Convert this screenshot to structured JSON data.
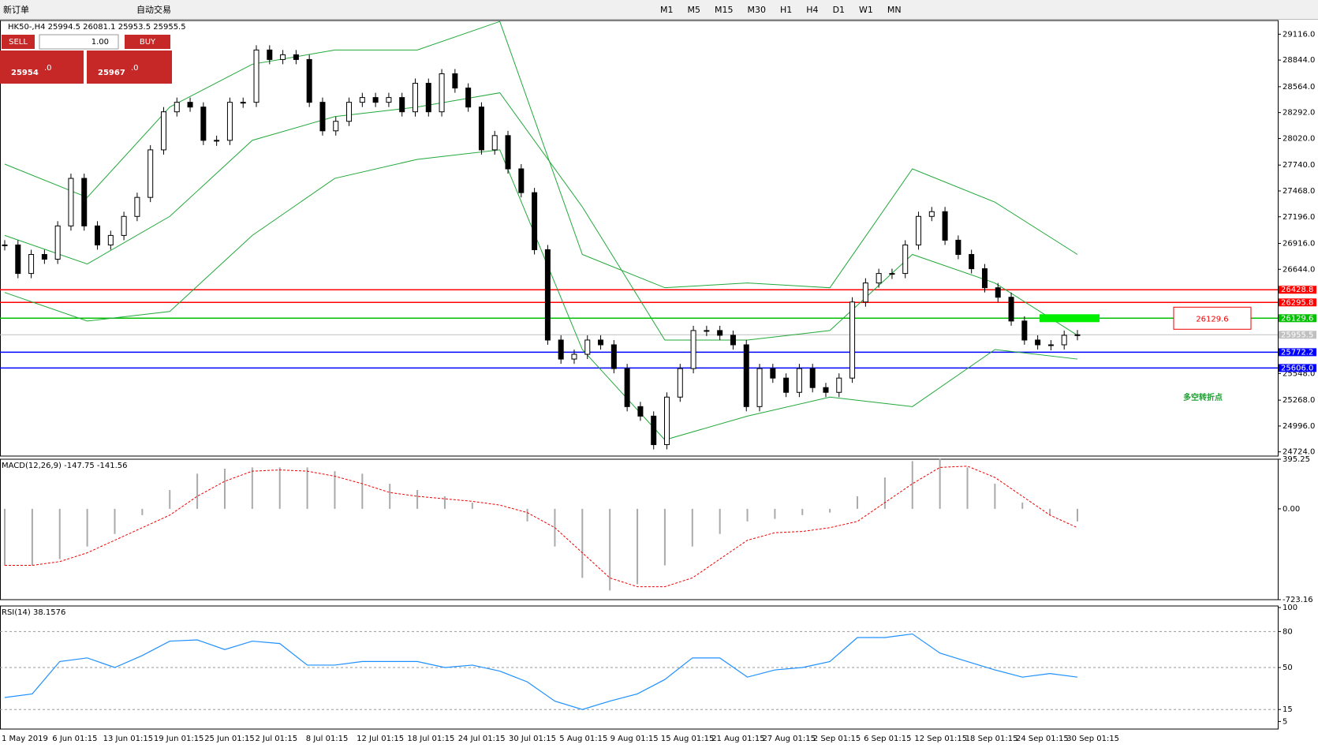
{
  "toolbar": {
    "new_order": "新订单",
    "auto_trading": "自动交易",
    "timeframes": [
      "M1",
      "M5",
      "M15",
      "M30",
      "H1",
      "H4",
      "D1",
      "W1",
      "MN"
    ]
  },
  "trade_panel": {
    "sell": "SELL",
    "buy": "BUY",
    "lots": "1.00",
    "sell_price": "25954",
    "sell_frac": ".0",
    "buy_price": "25967",
    "buy_frac": ".0"
  },
  "chart_data": {
    "type": "candlestick",
    "title": "HK50-,H4  25994.5 26081.1 25953.5 25955.5",
    "close": [
      26900,
      26600,
      26800,
      26750,
      27100,
      27600,
      27100,
      26900,
      27000,
      27200,
      27400,
      27900,
      28300,
      28400,
      28350,
      28000,
      28000,
      28400,
      28400,
      28950,
      28850,
      28900,
      28850,
      28400,
      28100,
      28200,
      28400,
      28450,
      28400,
      28450,
      28300,
      28600,
      28300,
      28700,
      28550,
      28350,
      27900,
      28050,
      27700,
      27450,
      26850,
      25900,
      25700,
      25750,
      25900,
      25850,
      25600,
      25200,
      25100,
      24800,
      25300,
      25600,
      26000,
      26000,
      25950,
      25850,
      25200,
      25600,
      25500,
      25350,
      25600,
      25400,
      25350,
      25500,
      26300,
      26500,
      26600,
      26600,
      26900,
      27200,
      27250,
      26950,
      26800,
      26650,
      26450,
      26350,
      26100,
      25900,
      25850,
      25850,
      25950,
      25955.5
    ],
    "bands": [
      {
        "color": "#22a83a",
        "values": [
          27750,
          27400,
          28350,
          28800,
          28950,
          28950,
          29250,
          26800,
          26450,
          26500,
          26450,
          27700,
          27350,
          26800
        ]
      },
      {
        "color": "#22a83a",
        "values": [
          27000,
          26700,
          27200,
          28000,
          28250,
          28350,
          28500,
          27300,
          25900,
          25900,
          26000,
          26800,
          26500,
          25950
        ]
      },
      {
        "color": "#22a83a",
        "values": [
          26400,
          26100,
          26200,
          27000,
          27600,
          27800,
          27900,
          25800,
          24850,
          25100,
          25300,
          25200,
          25800,
          25700
        ]
      }
    ],
    "ylim": [
      24680,
      29260
    ],
    "yticks": [
      {
        "value": 29116,
        "label": "29116.0"
      },
      {
        "value": 28844,
        "label": "28844.0"
      },
      {
        "value": 28564,
        "label": "28564.0"
      },
      {
        "value": 28292,
        "label": "28292.0"
      },
      {
        "value": 28020,
        "label": "28020.0"
      },
      {
        "value": 27740,
        "label": "27740.0"
      },
      {
        "value": 27468,
        "label": "27468.0"
      },
      {
        "value": 27196,
        "label": "27196.0"
      },
      {
        "value": 26916,
        "label": "26916.0"
      },
      {
        "value": 26644,
        "label": "26644.0"
      },
      {
        "value": 25548,
        "label": "25548.0"
      },
      {
        "value": 25268,
        "label": "25268.0"
      },
      {
        "value": 24996,
        "label": "24996.0"
      },
      {
        "value": 24724,
        "label": "24724.0"
      }
    ],
    "levels": [
      {
        "value": 26428.8,
        "color": "#ff0000"
      },
      {
        "value": 26295.8,
        "color": "#ff0000"
      },
      {
        "value": 26129.6,
        "color": "#00c000"
      },
      {
        "value": 25955.5,
        "color": "#c0c0c0"
      },
      {
        "value": 25772.2,
        "color": "#0000ff"
      },
      {
        "value": 25606,
        "label": "25606.0",
        "color": "#0000ff"
      }
    ],
    "annotation": "26129.6",
    "annotation_value": 26129.6,
    "note": "多空转折点",
    "macd": {
      "title": "MACD(12,26,9) -147.75 -141.56",
      "ylim": [
        -723.16,
        395.25
      ],
      "yticks": [
        {
          "value": 395.25,
          "label": "395.25"
        },
        {
          "value": 0,
          "label": "0.00"
        },
        {
          "value": -723.16,
          "label": "-723.16"
        }
      ],
      "histogram": [
        -450,
        -450,
        -400,
        -300,
        -200,
        -50,
        150,
        280,
        320,
        330,
        330,
        330,
        300,
        280,
        200,
        150,
        100,
        50,
        0,
        -100,
        -300,
        -550,
        -650,
        -600,
        -450,
        -300,
        -200,
        -100,
        -80,
        -50,
        -30,
        100,
        250,
        380,
        400,
        330,
        200,
        50,
        -50,
        -100
      ],
      "signal": [
        -450,
        -450,
        -420,
        -350,
        -250,
        -150,
        -50,
        100,
        220,
        300,
        310,
        300,
        260,
        200,
        130,
        100,
        80,
        60,
        30,
        -30,
        -150,
        -350,
        -550,
        -620,
        -620,
        -550,
        -400,
        -250,
        -190,
        -180,
        -150,
        -100,
        50,
        200,
        330,
        340,
        250,
        100,
        -50,
        -150
      ]
    },
    "rsi": {
      "title": "RSI(14) 38.1576",
      "ylim": [
        0,
        100
      ],
      "yticks": [
        100,
        80,
        50,
        15,
        5
      ],
      "levels": [
        80,
        50,
        15
      ],
      "values": [
        25,
        28,
        55,
        58,
        50,
        60,
        72,
        73,
        65,
        72,
        70,
        52,
        52,
        55,
        55,
        55,
        50,
        52,
        47,
        38,
        22,
        15,
        22,
        28,
        40,
        58,
        58,
        42,
        48,
        50,
        55,
        75,
        75,
        78,
        62,
        55,
        48,
        42,
        45,
        42
      ]
    },
    "x_labels": [
      "1 May 2019",
      "6 Jun 01:15",
      "13 Jun 01:15",
      "19 Jun 01:15",
      "25 Jun 01:15",
      "2 Jul 01:15",
      "8 Jul 01:15",
      "12 Jul 01:15",
      "18 Jul 01:15",
      "24 Jul 01:15",
      "30 Jul 01:15",
      "5 Aug 01:15",
      "9 Aug 01:15",
      "15 Aug 01:15",
      "21 Aug 01:15",
      "27 Aug 01:15",
      "2 Sep 01:15",
      "6 Sep 01:15",
      "12 Sep 01:15",
      "18 Sep 01:15",
      "24 Sep 01:15",
      "30 Sep 01:15"
    ]
  }
}
